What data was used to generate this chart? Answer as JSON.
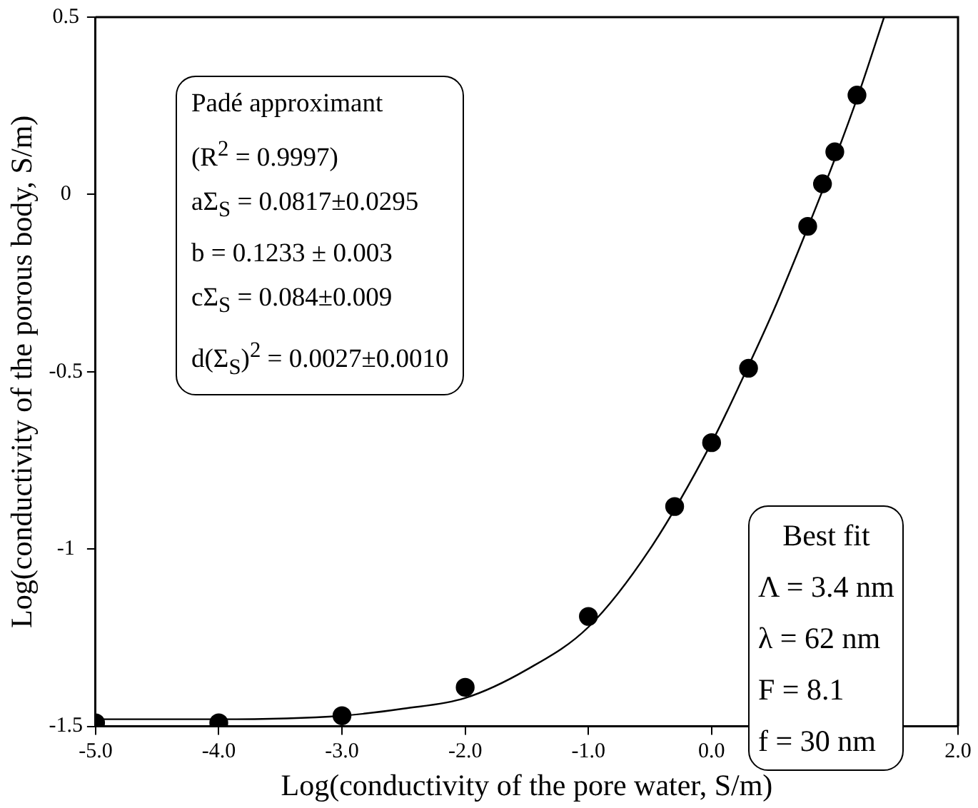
{
  "chart_data": {
    "type": "scatter",
    "xlabel": "Log(conductivity of the pore water, S/m)",
    "ylabel": "Log(conductivity of the porous body, S/m)",
    "xlim": [
      -5,
      2
    ],
    "ylim": [
      -1.5,
      0.5
    ],
    "xticks": [
      {
        "value": -5,
        "label": "-5.0"
      },
      {
        "value": -4,
        "label": "-4.0"
      },
      {
        "value": -3,
        "label": "-3.0"
      },
      {
        "value": -2,
        "label": "-2.0"
      },
      {
        "value": -1,
        "label": "-1.0"
      },
      {
        "value": 0,
        "label": "0.0"
      },
      {
        "value": 1,
        "label": null
      },
      {
        "value": 2,
        "label": "2.0"
      }
    ],
    "yticks": [
      -1.5,
      -1,
      -0.5,
      0,
      0.5
    ],
    "grid": false,
    "legend": false,
    "marker": "circle",
    "series": [
      {
        "color": "#000000",
        "x": [
          -5,
          -4,
          -3,
          -2,
          -1,
          -0.3,
          0,
          0.3,
          0.78,
          0.9,
          1.0,
          1.18
        ],
        "values": [
          -1.49,
          -1.49,
          -1.47,
          -1.39,
          -1.19,
          -0.88,
          -0.7,
          -0.49,
          -0.09,
          0.03,
          0.12,
          0.28
        ]
      },
      {
        "type": "line",
        "color": "#000000",
        "marker": "none",
        "x": [
          -5,
          -4,
          -3,
          -2.5,
          -2,
          -1.5,
          -1,
          -0.5,
          0,
          0.25,
          0.5,
          0.75,
          1.0,
          1.2,
          1.4
        ],
        "values": [
          -1.48,
          -1.48,
          -1.47,
          -1.45,
          -1.42,
          -1.34,
          -1.22,
          -1.0,
          -0.7,
          -0.52,
          -0.33,
          -0.12,
          0.1,
          0.29,
          0.5
        ]
      }
    ],
    "annotations": [
      "Padé approximant",
      "(R$^{2}$ = 0.9997)",
      "aΣ$_{S}$ = 0.0817±0.0295",
      "b = 0.1233 ± 0.003",
      "cΣ$_{S}$ = 0.084±0.009",
      "d(Σ$_{S}$)$^{2}$ = 0.0027±0.0010",
      "Best fit",
      "Λ = 3.4 nm",
      "λ = 62 nm",
      "F = 8.1",
      "f = 30 nm"
    ]
  }
}
